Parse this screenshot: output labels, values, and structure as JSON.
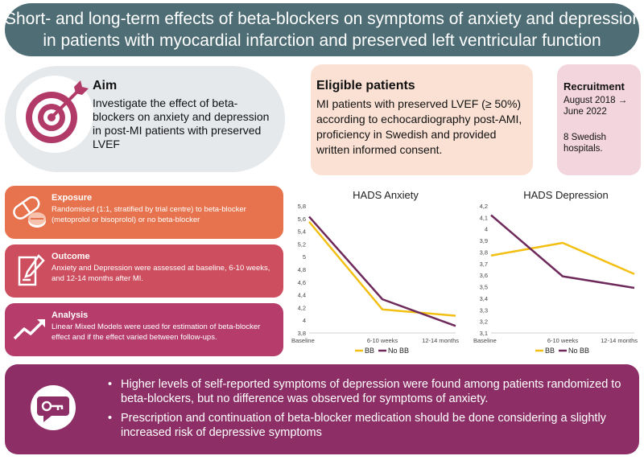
{
  "title": {
    "line1": "Short- and long-term effects of beta-blockers on symptoms of anxiety and depression",
    "line2": "in patients with myocardial infarction and preserved left ventricular function"
  },
  "aim": {
    "heading": "Aim",
    "text": "Investigate the effect of beta-blockers on anxiety and depression in post-MI patients with preserved LVEF",
    "icon": "target-icon"
  },
  "eligible": {
    "heading": "Eligible patients",
    "text": "MI patients with preserved LVEF (≥ 50%) according to echocardiography post-AMI, proficiency in Swedish and provided written informed consent."
  },
  "recruitment": {
    "heading": "Recruitment",
    "dates": "August 2018 → June 2022",
    "hospitals": "8 Swedish hospitals."
  },
  "exposure": {
    "heading": "Exposure",
    "text": "Randomised (1:1, stratified by trial centre) to beta-blocker (metoprolol or bisoprolol) or no beta-blocker",
    "icon": "pills-icon"
  },
  "outcome": {
    "heading": "Outcome",
    "text": "Anxiety and Depression were assessed at baseline, 6-10 weeks, and 12-14 months after MI.",
    "icon": "pencil-paper-icon"
  },
  "analysis": {
    "heading": "Analysis",
    "text": "Linear Mixed Models were used for estimation of beta-blocker effect and if the effect varied between follow-ups.",
    "icon": "trend-arrow-icon"
  },
  "key_findings": {
    "icon": "key-icon",
    "bullet": "•",
    "points": [
      "Higher levels of self-reported symptoms of depression were found among patients randomized to beta-blockers, but no difference was observed for symptoms of anxiety.",
      "Prescription and continuation of beta-blocker medication should be done considering a slightly increased risk of depressive symptoms"
    ]
  },
  "colors": {
    "title_bg": "#4e6d74",
    "bb": "#f2bf12",
    "no_bb": "#6e2a5a",
    "key_bg": "#8d2f66"
  },
  "chart_data": [
    {
      "type": "line",
      "title": "HADS Anxiety",
      "categories": [
        "Baseline",
        "6-10 weeks",
        "12-14 months"
      ],
      "series": [
        {
          "name": "BB",
          "values": [
            5.55,
            4.17,
            4.07
          ]
        },
        {
          "name": "No BB",
          "values": [
            5.63,
            4.33,
            3.91
          ]
        }
      ],
      "ylim": [
        3.8,
        5.8
      ],
      "yticks": [
        "3,8",
        "4",
        "4,2",
        "4,4",
        "4,6",
        "4,8",
        "5",
        "5,2",
        "5,4",
        "5,6",
        "5,8"
      ],
      "xlabel": "",
      "ylabel": ""
    },
    {
      "type": "line",
      "title": "HADS Depression",
      "categories": [
        "Baseline",
        "6-10 weeks",
        "12-14 months"
      ],
      "series": [
        {
          "name": "BB",
          "values": [
            3.77,
            3.88,
            3.61
          ]
        },
        {
          "name": "No BB",
          "values": [
            4.12,
            3.59,
            3.49
          ]
        }
      ],
      "ylim": [
        3.1,
        4.2
      ],
      "yticks": [
        "3,1",
        "3,2",
        "3,3",
        "3,4",
        "3,5",
        "3,6",
        "3,7",
        "3,8",
        "3,9",
        "4",
        "4,1",
        "4,2"
      ],
      "xlabel": "",
      "ylabel": ""
    }
  ]
}
